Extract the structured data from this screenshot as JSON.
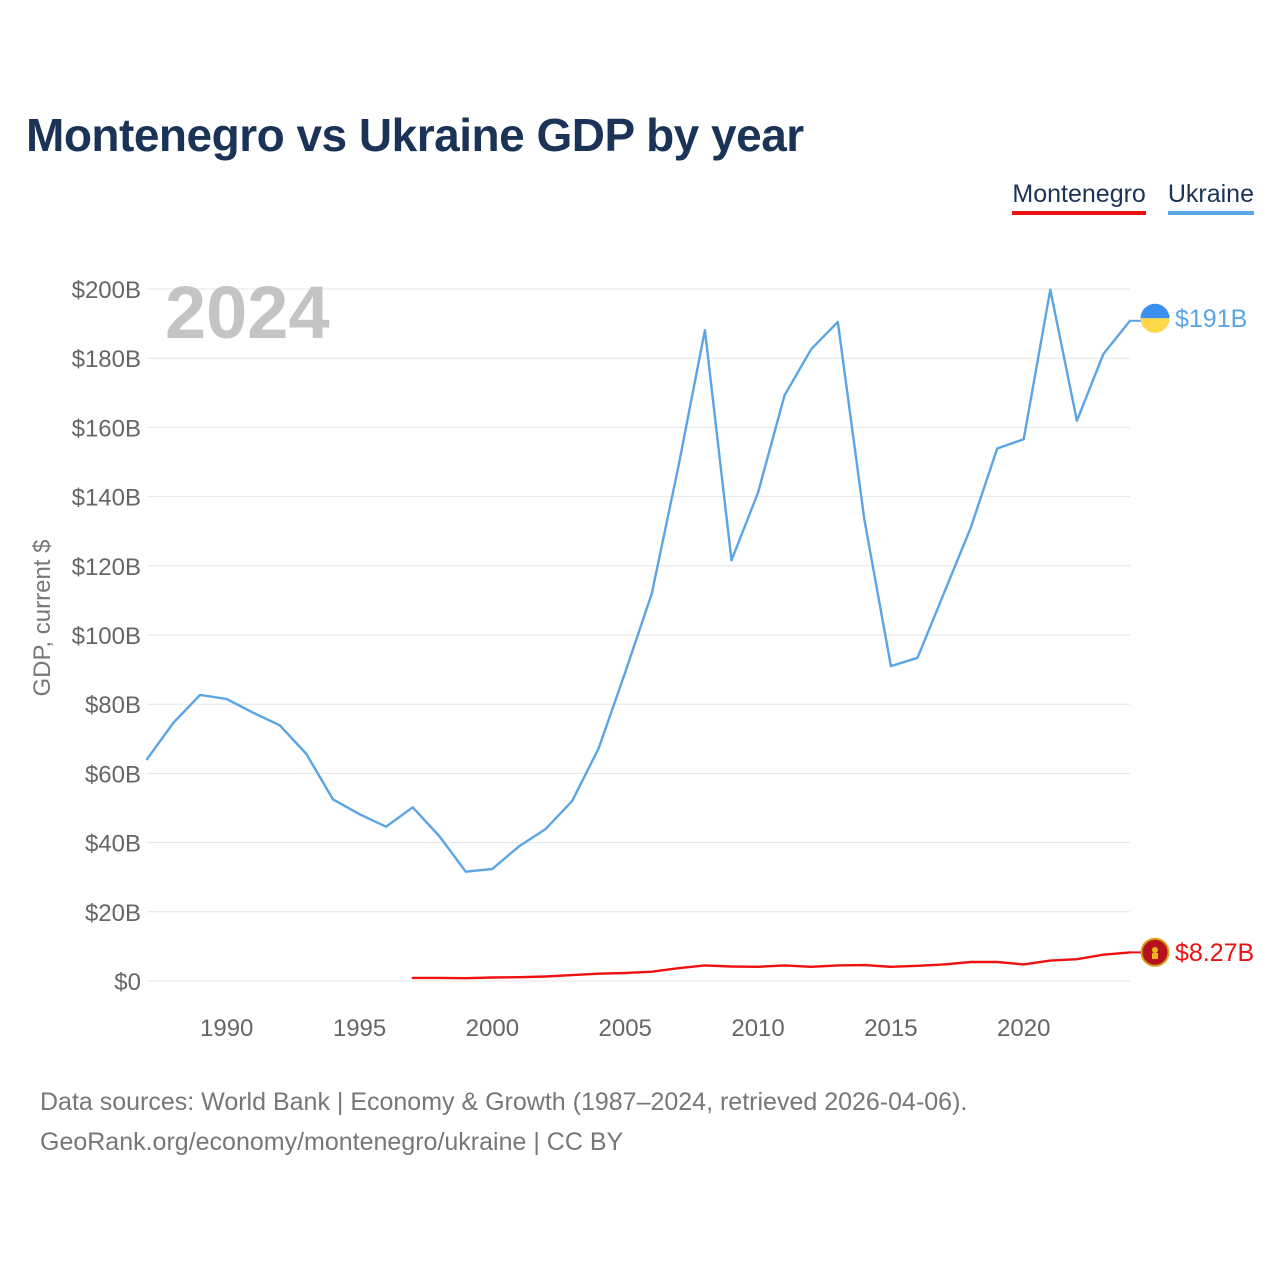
{
  "title": "Montenegro vs Ukraine GDP by year",
  "legend": [
    {
      "label": "Montenegro",
      "color": "#ee1111"
    },
    {
      "label": "Ukraine",
      "color": "#5ba4e5"
    }
  ],
  "year_watermark": "2024",
  "source": {
    "line1": "Data sources: World Bank | Economy & Growth (1987–2024, retrieved 2026-04-06).",
    "line2": "GeoRank.org/economy/montenegro/ukraine | CC BY"
  },
  "chart_data": {
    "type": "line",
    "title": "Montenegro vs Ukraine GDP by year",
    "xlabel": "",
    "ylabel": "GDP, current $",
    "xlim": [
      1987,
      2024
    ],
    "ylim": [
      0,
      200
    ],
    "y_unit": "billion US$",
    "grid": true,
    "legend_position": "top-right",
    "x_ticks": [
      1990,
      1995,
      2000,
      2005,
      2010,
      2015,
      2020
    ],
    "y_ticks": [
      {
        "value": 0,
        "label": "$0"
      },
      {
        "value": 20,
        "label": "$20B"
      },
      {
        "value": 40,
        "label": "$40B"
      },
      {
        "value": 60,
        "label": "$60B"
      },
      {
        "value": 80,
        "label": "$80B"
      },
      {
        "value": 100,
        "label": "$100B"
      },
      {
        "value": 120,
        "label": "$120B"
      },
      {
        "value": 140,
        "label": "$140B"
      },
      {
        "value": 160,
        "label": "$160B"
      },
      {
        "value": 180,
        "label": "$180B"
      },
      {
        "value": 200,
        "label": "$200B"
      }
    ],
    "series": [
      {
        "name": "Ukraine",
        "color": "#5ba4e5",
        "end_label": "$191B",
        "x": [
          1987,
          1988,
          1989,
          1990,
          1991,
          1992,
          1993,
          1994,
          1995,
          1996,
          1997,
          1998,
          1999,
          2000,
          2001,
          2002,
          2003,
          2004,
          2005,
          2006,
          2007,
          2008,
          2009,
          2010,
          2011,
          2012,
          2013,
          2014,
          2015,
          2016,
          2017,
          2018,
          2019,
          2020,
          2021,
          2022,
          2023,
          2024
        ],
        "values": [
          64.1,
          74.7,
          82.7,
          81.5,
          77.5,
          73.9,
          65.6,
          52.5,
          48.2,
          44.6,
          50.2,
          41.9,
          31.6,
          32.4,
          38.9,
          43.9,
          52.0,
          67.2,
          89.2,
          112.0,
          148.7,
          188.1,
          121.6,
          141.2,
          169.3,
          182.6,
          190.5,
          133.5,
          91.0,
          93.4,
          112.1,
          130.9,
          153.9,
          156.6,
          199.8,
          161.9,
          181.2,
          190.8
        ]
      },
      {
        "name": "Montenegro",
        "color": "#ee1111",
        "end_label": "$8.27B",
        "x": [
          1997,
          1998,
          1999,
          2000,
          2001,
          2002,
          2003,
          2004,
          2005,
          2006,
          2007,
          2008,
          2009,
          2010,
          2011,
          2012,
          2013,
          2014,
          2015,
          2016,
          2017,
          2018,
          2019,
          2020,
          2021,
          2022,
          2023,
          2024
        ],
        "values": [
          0.9,
          0.9,
          0.8,
          1.0,
          1.1,
          1.3,
          1.7,
          2.1,
          2.3,
          2.7,
          3.7,
          4.5,
          4.2,
          4.1,
          4.5,
          4.1,
          4.5,
          4.6,
          4.1,
          4.4,
          4.8,
          5.5,
          5.5,
          4.8,
          5.9,
          6.3,
          7.6,
          8.27
        ]
      }
    ]
  }
}
